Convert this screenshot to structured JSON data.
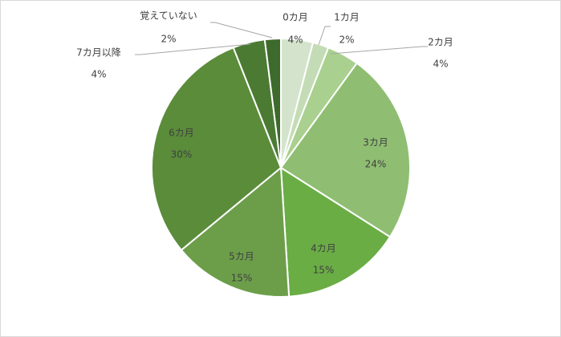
{
  "chart_data": {
    "type": "pie",
    "title": "",
    "slices": [
      {
        "label": "0カ月",
        "value": 4,
        "value_label": "4%",
        "color": "#d4e4cc"
      },
      {
        "label": "1カ月",
        "value": 2,
        "value_label": "2%",
        "color": "#c3dcb5"
      },
      {
        "label": "2カ月",
        "value": 4,
        "value_label": "4%",
        "color": "#a9d08e"
      },
      {
        "label": "3カ月",
        "value": 24,
        "value_label": "24%",
        "color": "#8fbe72"
      },
      {
        "label": "4カ月",
        "value": 15,
        "value_label": "15%",
        "color": "#6aad45"
      },
      {
        "label": "5カ月",
        "value": 15,
        "value_label": "15%",
        "color": "#6c9e4a"
      },
      {
        "label": "6カ月",
        "value": 30,
        "value_label": "30%",
        "color": "#5a8c3a"
      },
      {
        "label": "7カ月以降",
        "value": 4,
        "value_label": "4%",
        "color": "#4b7a33"
      },
      {
        "label": "覚えていない",
        "value": 2,
        "value_label": "2%",
        "color": "#3e6a2b"
      }
    ],
    "start_angle_deg": 0,
    "direction": "clockwise",
    "legend": "none",
    "slice_border_color": "#ffffff"
  }
}
